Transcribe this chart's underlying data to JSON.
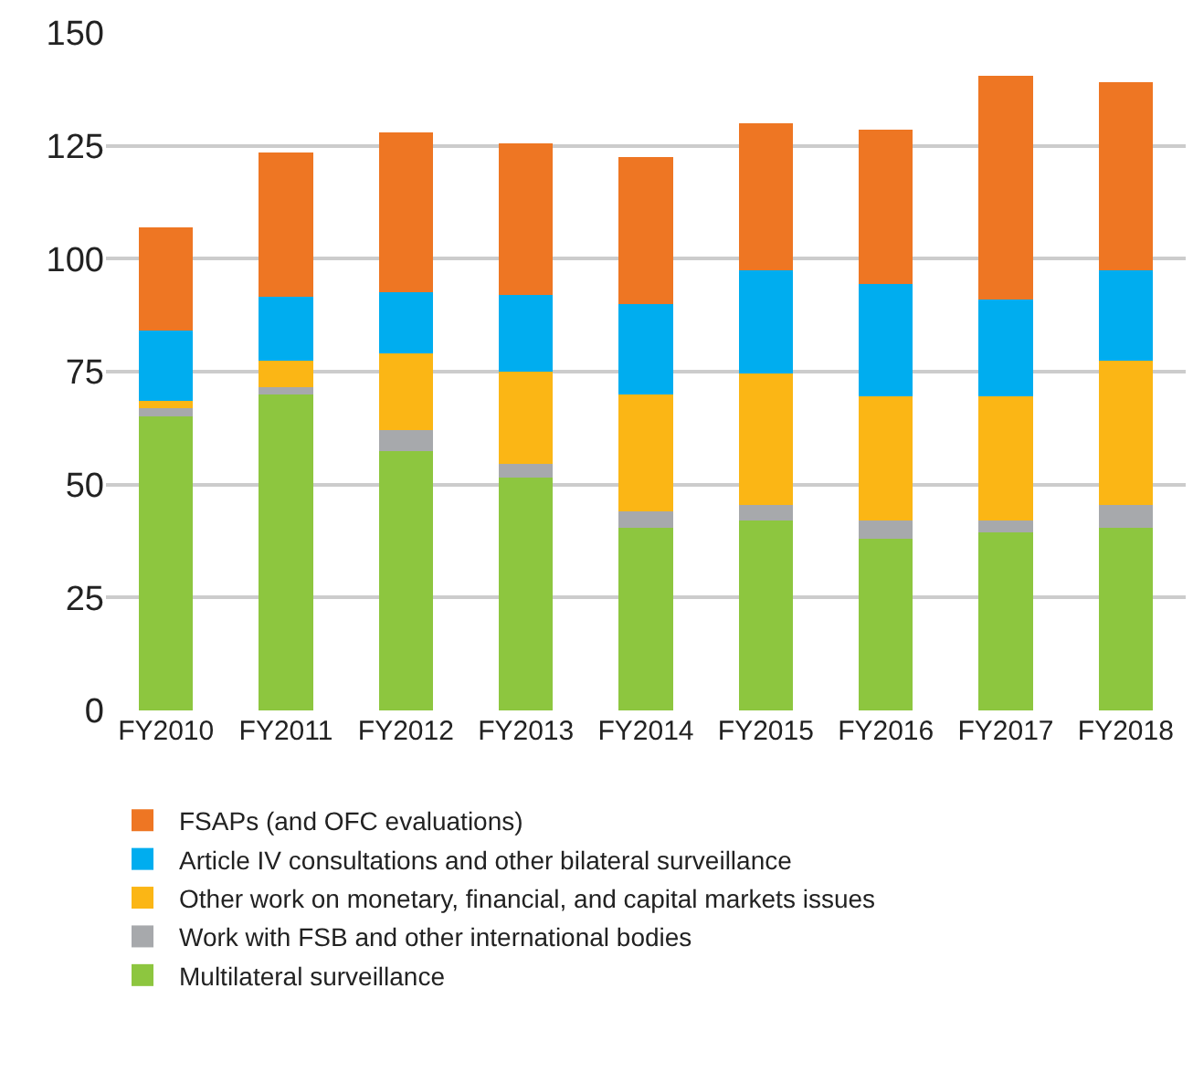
{
  "chart_data": {
    "type": "bar",
    "stacked": true,
    "categories": [
      "FY2010",
      "FY2011",
      "FY2012",
      "FY2013",
      "FY2014",
      "FY2015",
      "FY2016",
      "FY2017",
      "FY2018"
    ],
    "series": [
      {
        "name": "Multilateral surveillance",
        "color": "#8dc63f",
        "values": [
          65,
          70,
          57.5,
          51.5,
          40.5,
          42,
          38,
          39.5,
          40.5
        ]
      },
      {
        "name": "Work with FSB and other international bodies",
        "color": "#a7a9ac",
        "values": [
          2,
          1.5,
          4.5,
          3,
          3.5,
          3.5,
          4,
          2.5,
          5
        ]
      },
      {
        "name": "Other work on monetary, financial, and capital markets issues",
        "color": "#fbb615",
        "values": [
          1.5,
          6,
          17,
          20.5,
          26,
          29,
          27.5,
          27.5,
          32
        ]
      },
      {
        "name": "Article IV consultations and other bilateral surveillance",
        "color": "#00adef",
        "values": [
          15.5,
          14,
          13.5,
          17,
          20,
          23,
          25,
          21.5,
          20
        ]
      },
      {
        "name": "FSAPs (and OFC evaluations)",
        "color": "#ee7623",
        "values": [
          23,
          32,
          35.5,
          33.5,
          32.5,
          32.5,
          34,
          49.5,
          41.5
        ]
      }
    ],
    "ylim": [
      0,
      150
    ],
    "yticks": [
      0,
      25,
      50,
      75,
      100,
      125,
      150
    ],
    "grid": "y",
    "legend": "bottom"
  }
}
